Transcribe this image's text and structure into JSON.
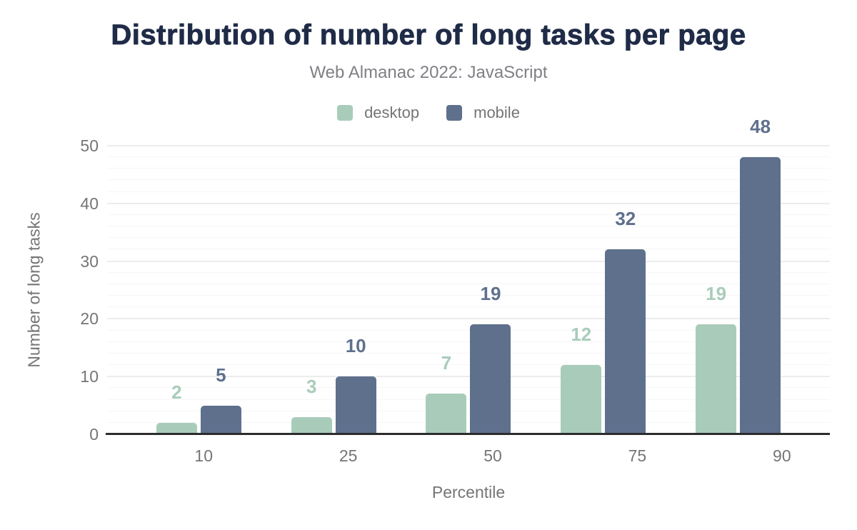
{
  "chart_data": {
    "type": "bar",
    "title": "Distribution of number of long tasks per page",
    "subtitle": "Web Almanac 2022: JavaScript",
    "categories": [
      "10",
      "25",
      "50",
      "75",
      "90"
    ],
    "series": [
      {
        "name": "desktop",
        "color": "#a9ccba",
        "values": [
          2,
          3,
          7,
          12,
          19
        ]
      },
      {
        "name": "mobile",
        "color": "#5e708c",
        "values": [
          5,
          10,
          19,
          32,
          48
        ]
      }
    ],
    "xlabel": "Percentile",
    "ylabel": "Number of long tasks",
    "ylim": [
      0,
      50
    ],
    "yticks": [
      0,
      10,
      20,
      30,
      40,
      50
    ],
    "minor_grid_step": 2,
    "grid": true,
    "legend_position": "top",
    "bar_value_labels": true
  },
  "colors": {
    "title_text": "#1f2b47",
    "muted_text": "#757575",
    "axis_line": "#2d2d2d",
    "grid_major": "#ececec",
    "grid_minor": "#f6f6f6",
    "background": "#ffffff"
  }
}
